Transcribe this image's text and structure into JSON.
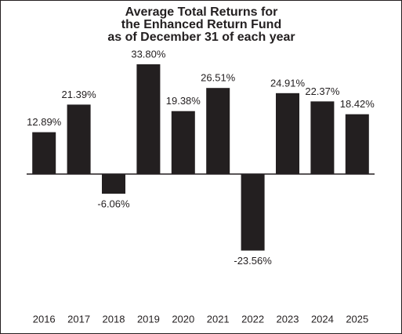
{
  "chart_data": {
    "type": "bar",
    "title": [
      "Average Total Returns for",
      "the Enhanced Return Fund",
      "as of December 31 of each year"
    ],
    "categories": [
      "2016",
      "2017",
      "2018",
      "2019",
      "2020",
      "2021",
      "2022",
      "2023",
      "2024",
      "2025"
    ],
    "values": [
      12.89,
      21.39,
      -6.06,
      33.8,
      19.38,
      26.51,
      -23.56,
      24.91,
      22.37,
      18.42
    ],
    "value_labels": [
      "12.89%",
      "21.39%",
      "-6.06%",
      "33.80%",
      "19.38%",
      "26.51%",
      "-23.56%",
      "24.91%",
      "22.37%",
      "18.42%"
    ],
    "color": "#231f20"
  }
}
